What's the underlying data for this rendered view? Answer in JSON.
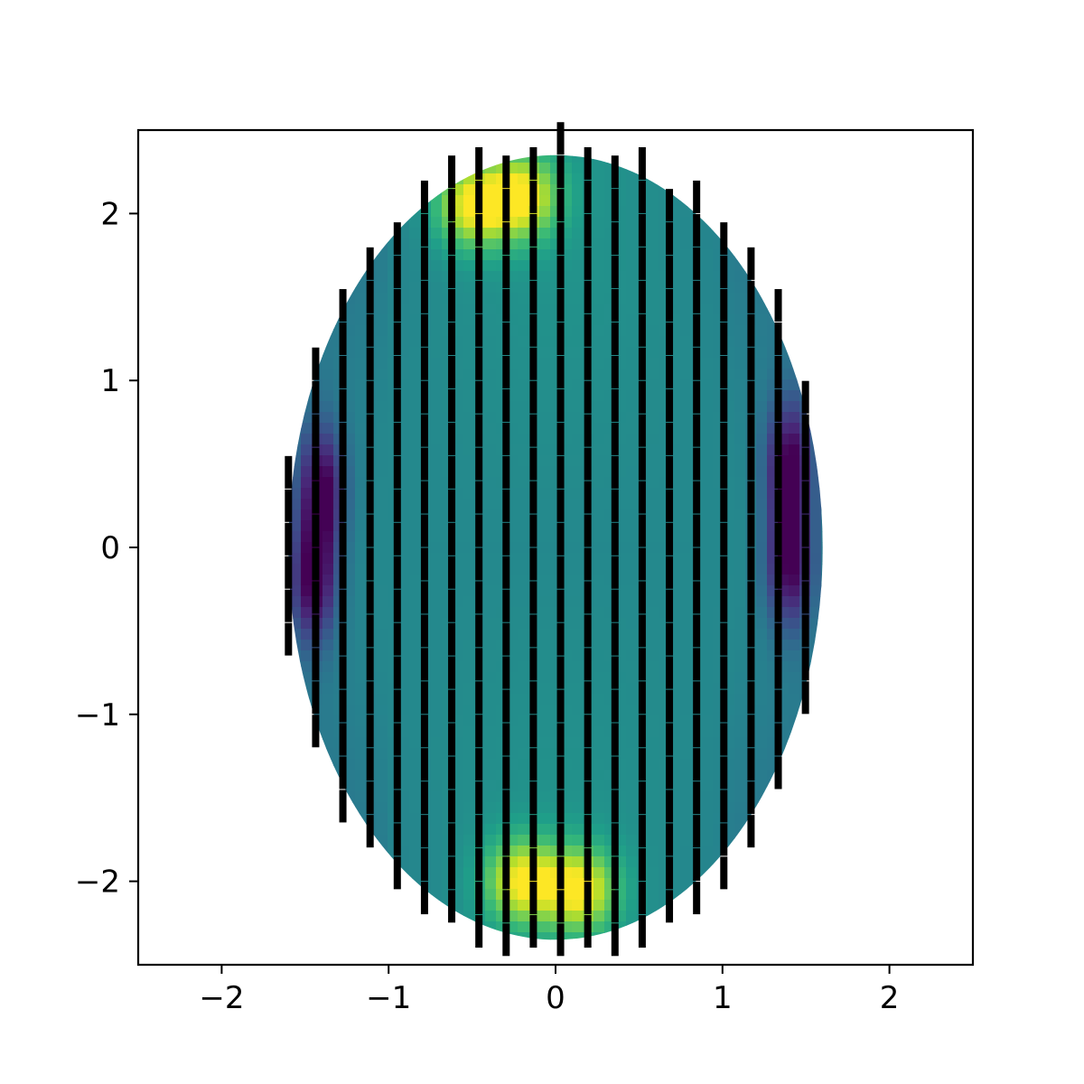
{
  "chart_data": {
    "type": "heatmap",
    "title": "",
    "xlabel": "",
    "ylabel": "",
    "xlim": [
      -2.5,
      2.5
    ],
    "ylim": [
      -2.5,
      2.5
    ],
    "x_ticks": [
      -2,
      -1,
      0,
      1,
      2
    ],
    "y_ticks": [
      -2,
      -1,
      0,
      1,
      2
    ],
    "x_tick_labels": [
      "−2",
      "−1",
      "0",
      "1",
      "2"
    ],
    "y_tick_labels": [
      "−2",
      "−1",
      "0",
      "1",
      "2"
    ],
    "grid": false,
    "legend": "none",
    "colormap": "viridis",
    "domain": {
      "shape": "ellipse",
      "center": [
        0,
        0
      ],
      "semi_axis_x": 1.6,
      "semi_axis_y": 2.35
    },
    "field_extrema": {
      "high": [
        [
          -0.5,
          2.05
        ],
        [
          -0.2,
          2.1
        ],
        [
          -0.2,
          -2.0
        ],
        [
          0.15,
          -2.05
        ]
      ],
      "low": [
        [
          -1.4,
          0.35
        ],
        [
          -1.45,
          -0.2
        ],
        [
          1.4,
          0.5
        ],
        [
          1.4,
          -0.1
        ]
      ]
    },
    "glyph_overlay": {
      "marker": "vertical dash",
      "color": "#000000",
      "grid_spacing": [
        0.163,
        0.1
      ],
      "orientation": "vertical"
    }
  }
}
